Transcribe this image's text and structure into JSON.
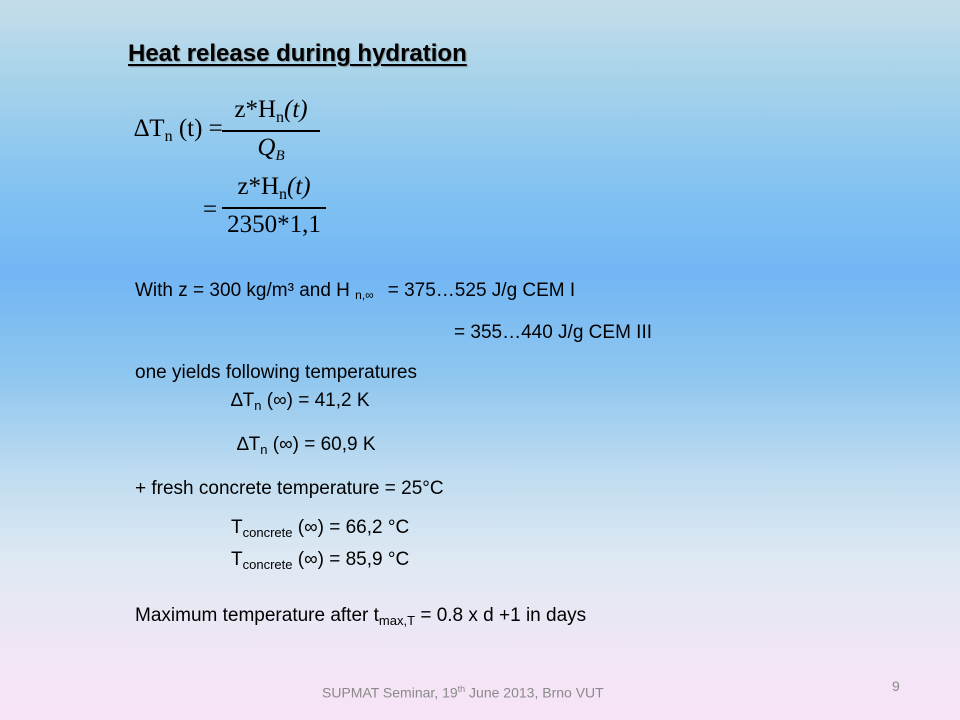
{
  "slide": {
    "title": "Heat release during hydration",
    "equation": {
      "lhs": "∆T",
      "lhs_sub": "n",
      "lhs_arg": "(t) =",
      "num1_prefix": "z*H",
      "num_sub": "n",
      "num_arg": "(t)",
      "den1_prefix": "Q",
      "den1_sub": "B",
      "eq2": "=",
      "num2_prefix": "z*H",
      "den2": "2350*1,1"
    },
    "line1": {
      "prefix": "With z = 300 kg/m³ and H ",
      "sub": "n,∞",
      "suffix": "= 375…525 J/g CEM I"
    },
    "line2": "= 355…440 J/g CEM III",
    "line3": "one yields following temperatures",
    "dt1": {
      "symbol": "∆T",
      "sub": "n",
      "rest": " (∞) = 41,2 K"
    },
    "dt2": {
      "symbol": "∆T",
      "sub": "n",
      "rest": " (∞) = 60,9 K"
    },
    "line_fresh": "+ fresh concrete temperature = 25°C",
    "tc1": {
      "symbol": "T",
      "sub": "concrete",
      "rest": " (∞) = 66,2 °C"
    },
    "tc2": {
      "symbol": "T",
      "sub": "concrete",
      "rest": " (∞) = 85,9 °C"
    },
    "max_line": {
      "prefix": "Maximum temperature after t",
      "sub": "max,T",
      "suffix": " = 0.8 x d +1 in days"
    }
  },
  "footer": {
    "prefix": "SUPMAT Seminar, 19",
    "sup": "th",
    "suffix": " June 2013, Brno VUT",
    "page_number": "9"
  }
}
